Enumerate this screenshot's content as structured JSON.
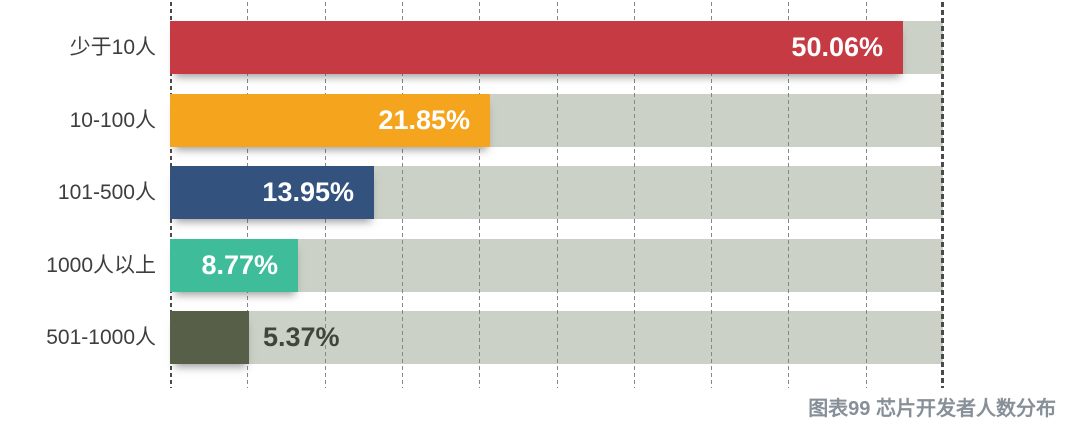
{
  "chart_data": {
    "type": "bar",
    "orientation": "horizontal",
    "title": "图表99 芯片开发者人数分布",
    "categories": [
      "少于10人",
      "10-100人",
      "101-500人",
      "1000人以上",
      "501-1000人"
    ],
    "values": [
      50.06,
      21.85,
      13.95,
      8.77,
      5.37
    ],
    "value_labels": [
      "50.06%",
      "21.85%",
      "13.95%",
      "8.77%",
      "5.37%"
    ],
    "bar_colors": [
      "#C63A44",
      "#F5A41E",
      "#33527D",
      "#3FBD9B",
      "#575F48"
    ],
    "label_inside": [
      true,
      true,
      true,
      true,
      false
    ],
    "label_colors": [
      "#FFFFFF",
      "#FFFFFF",
      "#FFFFFF",
      "#FFFFFF",
      "#3F4538"
    ],
    "track_color": "#CBD1C7",
    "xlabel": "",
    "ylabel": "",
    "xlim": [
      0,
      52.8
    ],
    "grid": {
      "style": "dashed-vertical",
      "intervals": 10
    },
    "legend": "none"
  },
  "colors": {
    "background": "#FFFFFF",
    "grid_line": "#83888B",
    "axis_line": "#4A4A4A",
    "category_label": "#3E3E3E",
    "caption": "#878F99"
  }
}
